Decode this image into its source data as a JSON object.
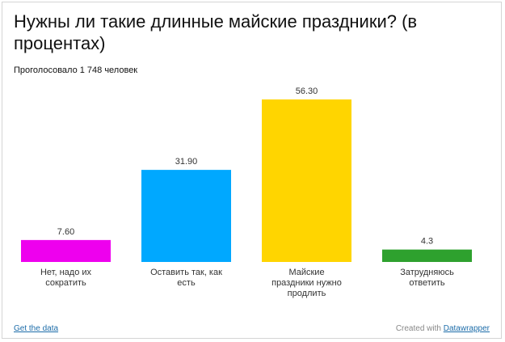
{
  "header": {
    "title": "Нужны ли такие длинные майские праздники? (в процентах)",
    "subtitle": "Проголосовало 1 748 человек"
  },
  "footer": {
    "get_data": "Get the data",
    "created_with": "Created with",
    "tool_name": "Datawrapper"
  },
  "chart_data": {
    "type": "bar",
    "title": "Нужны ли такие длинные майские праздники? (в процентах)",
    "subtitle": "Проголосовало 1 748 человек",
    "categories": [
      [
        "Нет, надо их",
        "сократить"
      ],
      [
        "Оставить так, как",
        "есть"
      ],
      [
        "Майские",
        "праздники нужно",
        "продлить"
      ],
      [
        "Затрудняюсь",
        "ответить"
      ]
    ],
    "values": [
      7.6,
      31.9,
      56.3,
      4.3
    ],
    "value_labels": [
      "7.60",
      "31.90",
      "56.30",
      "4.3"
    ],
    "colors": [
      "#ee00ee",
      "#00a8ff",
      "#ffd500",
      "#2ea12e"
    ],
    "ylim": [
      0,
      56.3
    ],
    "grid": false,
    "legend": "none",
    "xlabel": "",
    "ylabel": ""
  }
}
